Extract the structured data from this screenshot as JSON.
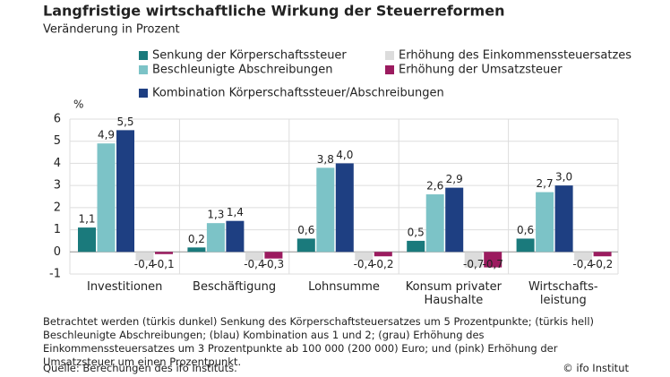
{
  "chart_data": {
    "type": "bar",
    "title": "Langfristige wirtschaftliche Wirkung der Steuerreformen",
    "subtitle": "Veränderung in Prozent",
    "y_unit": "%",
    "categories": [
      "Investitionen",
      "Beschäftigung",
      "Lohnsumme",
      "Konsum privater\nHaushalte",
      "Wirtschafts-\nleistung"
    ],
    "series": [
      {
        "name": "Senkung der Körperschaftssteuer",
        "color": "#1a7a7c",
        "values": [
          1.1,
          0.2,
          0.6,
          0.5,
          0.6
        ],
        "value_labels": [
          "1,1",
          "0,2",
          "0,6",
          "0,5",
          "0,6"
        ]
      },
      {
        "name": "Beschleunigte Abschreibungen",
        "color": "#7cc3c7",
        "values": [
          4.9,
          1.3,
          3.8,
          2.6,
          2.7
        ],
        "value_labels": [
          "4,9",
          "1,3",
          "3,8",
          "2,6",
          "2,7"
        ]
      },
      {
        "name": "Kombination Körperschaftssteuer/Abschreibungen",
        "color": "#1e3f82",
        "values": [
          5.5,
          1.4,
          4.0,
          2.9,
          3.0
        ],
        "value_labels": [
          "5,5",
          "1,4",
          "4,0",
          "2,9",
          "3,0"
        ]
      },
      {
        "name": "Erhöhung des Einkommenssteuersatzes",
        "color": "#dcdcdc",
        "values": [
          -0.4,
          -0.4,
          -0.4,
          -0.7,
          -0.4
        ],
        "value_labels": [
          "-0,4",
          "-0,4",
          "-0,4",
          "-0,7",
          "-0,4"
        ]
      },
      {
        "name": "Erhöhung der Umsatzsteuer",
        "color": "#9b1b5f",
        "values": [
          -0.1,
          -0.3,
          -0.2,
          -0.7,
          -0.2
        ],
        "value_labels": [
          "-0,1",
          "-0,3",
          "-0,2",
          "-0,7",
          "-0,2"
        ]
      }
    ],
    "ylim": [
      -1,
      6
    ],
    "yticks": [
      -1,
      0,
      1,
      2,
      3,
      4,
      5,
      6
    ],
    "grid": true,
    "note": "Betrachtet werden (türkis dunkel) Senkung des Körperschaftsteuersatzes um 5 Prozentpunkte; (türkis hell) Beschleunigte Abschreibungen; (blau) Kombination aus 1 und 2; (grau) Erhöhung des Einkommenssteuersatzes um 3 Prozentpunkte ab 100 000 (200 000) Euro; und (pink) Erhöhung der Umsatzsteuer um einen Prozentpunkt.",
    "source": "Quelle: Berechungen des ifo Instituts.",
    "credit": "© ifo Institut"
  }
}
